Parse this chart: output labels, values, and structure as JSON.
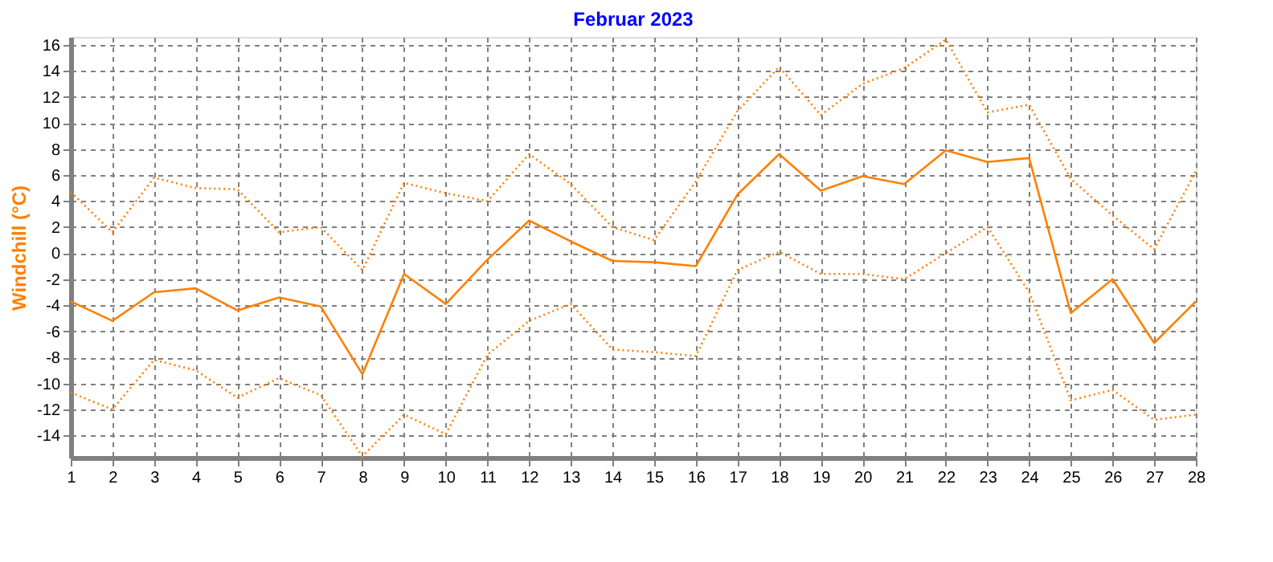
{
  "chart_data": {
    "type": "line",
    "title": "Februar 2023",
    "ylabel": "Windchill  (°C)",
    "x": [
      1,
      2,
      3,
      4,
      5,
      6,
      7,
      8,
      9,
      10,
      11,
      12,
      13,
      14,
      15,
      16,
      17,
      18,
      19,
      20,
      21,
      22,
      23,
      24,
      25,
      26,
      27,
      28
    ],
    "xlim": [
      1,
      28
    ],
    "xticks": [
      1,
      2,
      3,
      4,
      5,
      6,
      7,
      8,
      9,
      10,
      11,
      12,
      13,
      14,
      15,
      16,
      17,
      18,
      19,
      20,
      21,
      22,
      23,
      24,
      25,
      26,
      27,
      28
    ],
    "ylim": [
      -15.7,
      16.6
    ],
    "yticks": [
      -14,
      -12,
      -10,
      -8,
      -6,
      -4,
      -2,
      0,
      2,
      4,
      6,
      8,
      10,
      12,
      14,
      16
    ],
    "grid": true,
    "marker": "none",
    "series": [
      {
        "color": "#ff8000",
        "line_style": "dotted",
        "values": [
          4.7,
          1.6,
          5.8,
          5.0,
          4.9,
          1.6,
          2.0,
          -1.3,
          5.4,
          4.6,
          4.0,
          7.6,
          5.3,
          2.0,
          1.0,
          5.5,
          10.9,
          14.3,
          10.6,
          13.0,
          14.2,
          16.4,
          10.8,
          11.4,
          5.7,
          2.9,
          0.3,
          6.3
        ]
      },
      {
        "color": "#ff8000",
        "line_style": "solid",
        "values": [
          -3.7,
          -5.2,
          -3.0,
          -2.7,
          -4.4,
          -3.4,
          -4.1,
          -9.3,
          -1.6,
          -3.9,
          -0.5,
          2.5,
          0.9,
          -0.6,
          -0.7,
          -1.0,
          4.5,
          7.6,
          4.8,
          5.9,
          5.3,
          7.9,
          7.0,
          7.3,
          -4.6,
          -2.0,
          -6.9,
          -3.7
        ]
      },
      {
        "color": "#ff8000",
        "line_style": "dotted",
        "values": [
          -10.7,
          -12.0,
          -8.2,
          -9.0,
          -11.1,
          -9.6,
          -10.9,
          -15.6,
          -12.4,
          -13.9,
          -7.8,
          -5.2,
          -3.9,
          -7.4,
          -7.6,
          -7.9,
          -1.3,
          0.1,
          -1.6,
          -1.6,
          -2.0,
          0.0,
          2.0,
          -3.0,
          -11.3,
          -10.5,
          -12.8,
          -12.4
        ]
      }
    ]
  }
}
